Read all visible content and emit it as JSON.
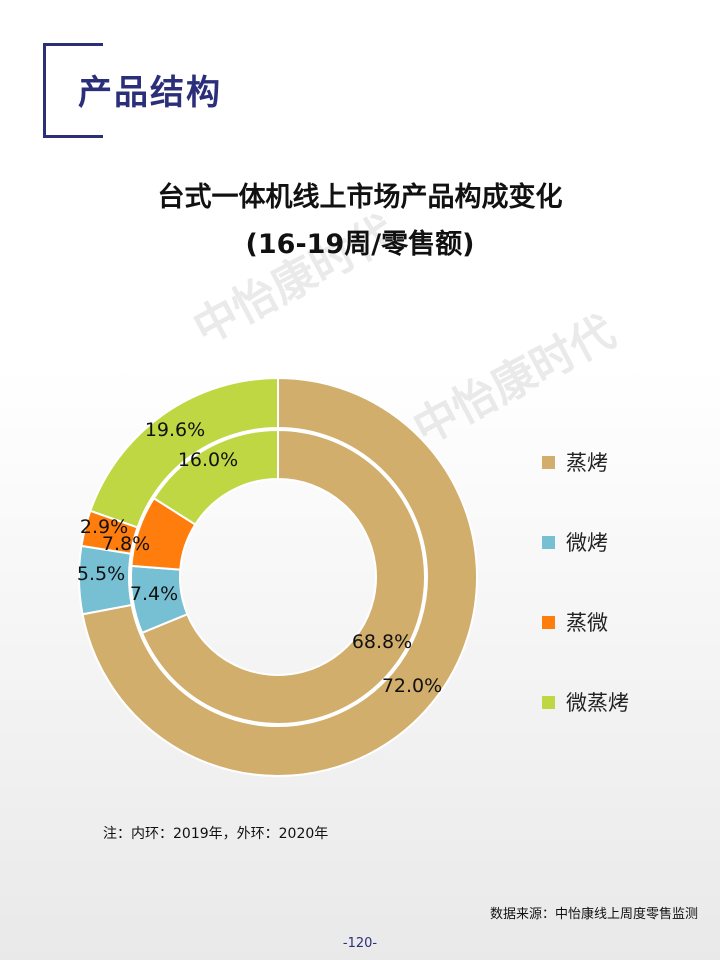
{
  "section_title": "产品结构",
  "chart_title_line1": "台式一体机线上市场产品构成变化",
  "chart_title_line2": "(16-19周/零售额)",
  "note": "注：内环：2019年，外环：2020年",
  "source": "数据来源：中怡康线上周度零售监测",
  "page_number": "-120-",
  "watermark": "中怡康时代",
  "colors": {
    "brand": "#2b2f7a",
    "zhengkao": "#d2ae6d",
    "weikao": "#77bfd3",
    "zhengwei": "#ff7d0c",
    "weizhengkao": "#bed742"
  },
  "chart_data": {
    "type": "donut",
    "title": "台式一体机线上市场产品构成变化",
    "subtitle": "(16-19周/零售额)",
    "categories": [
      "蒸烤",
      "微烤",
      "蒸微",
      "微蒸烤"
    ],
    "series": [
      {
        "name": "内环",
        "values": [
          68.8,
          7.4,
          7.8,
          16.0
        ],
        "labels": [
          "68.8%",
          "7.4%",
          "7.8%",
          "16.0%"
        ]
      },
      {
        "name": "外环",
        "values": [
          72.0,
          5.5,
          2.9,
          19.6
        ],
        "labels": [
          "72.0%",
          "5.5%",
          "2.9%",
          "19.6%"
        ]
      }
    ],
    "legend": {
      "position": "right",
      "items": [
        "蒸烤",
        "微烤",
        "蒸微",
        "微蒸烤"
      ]
    }
  }
}
